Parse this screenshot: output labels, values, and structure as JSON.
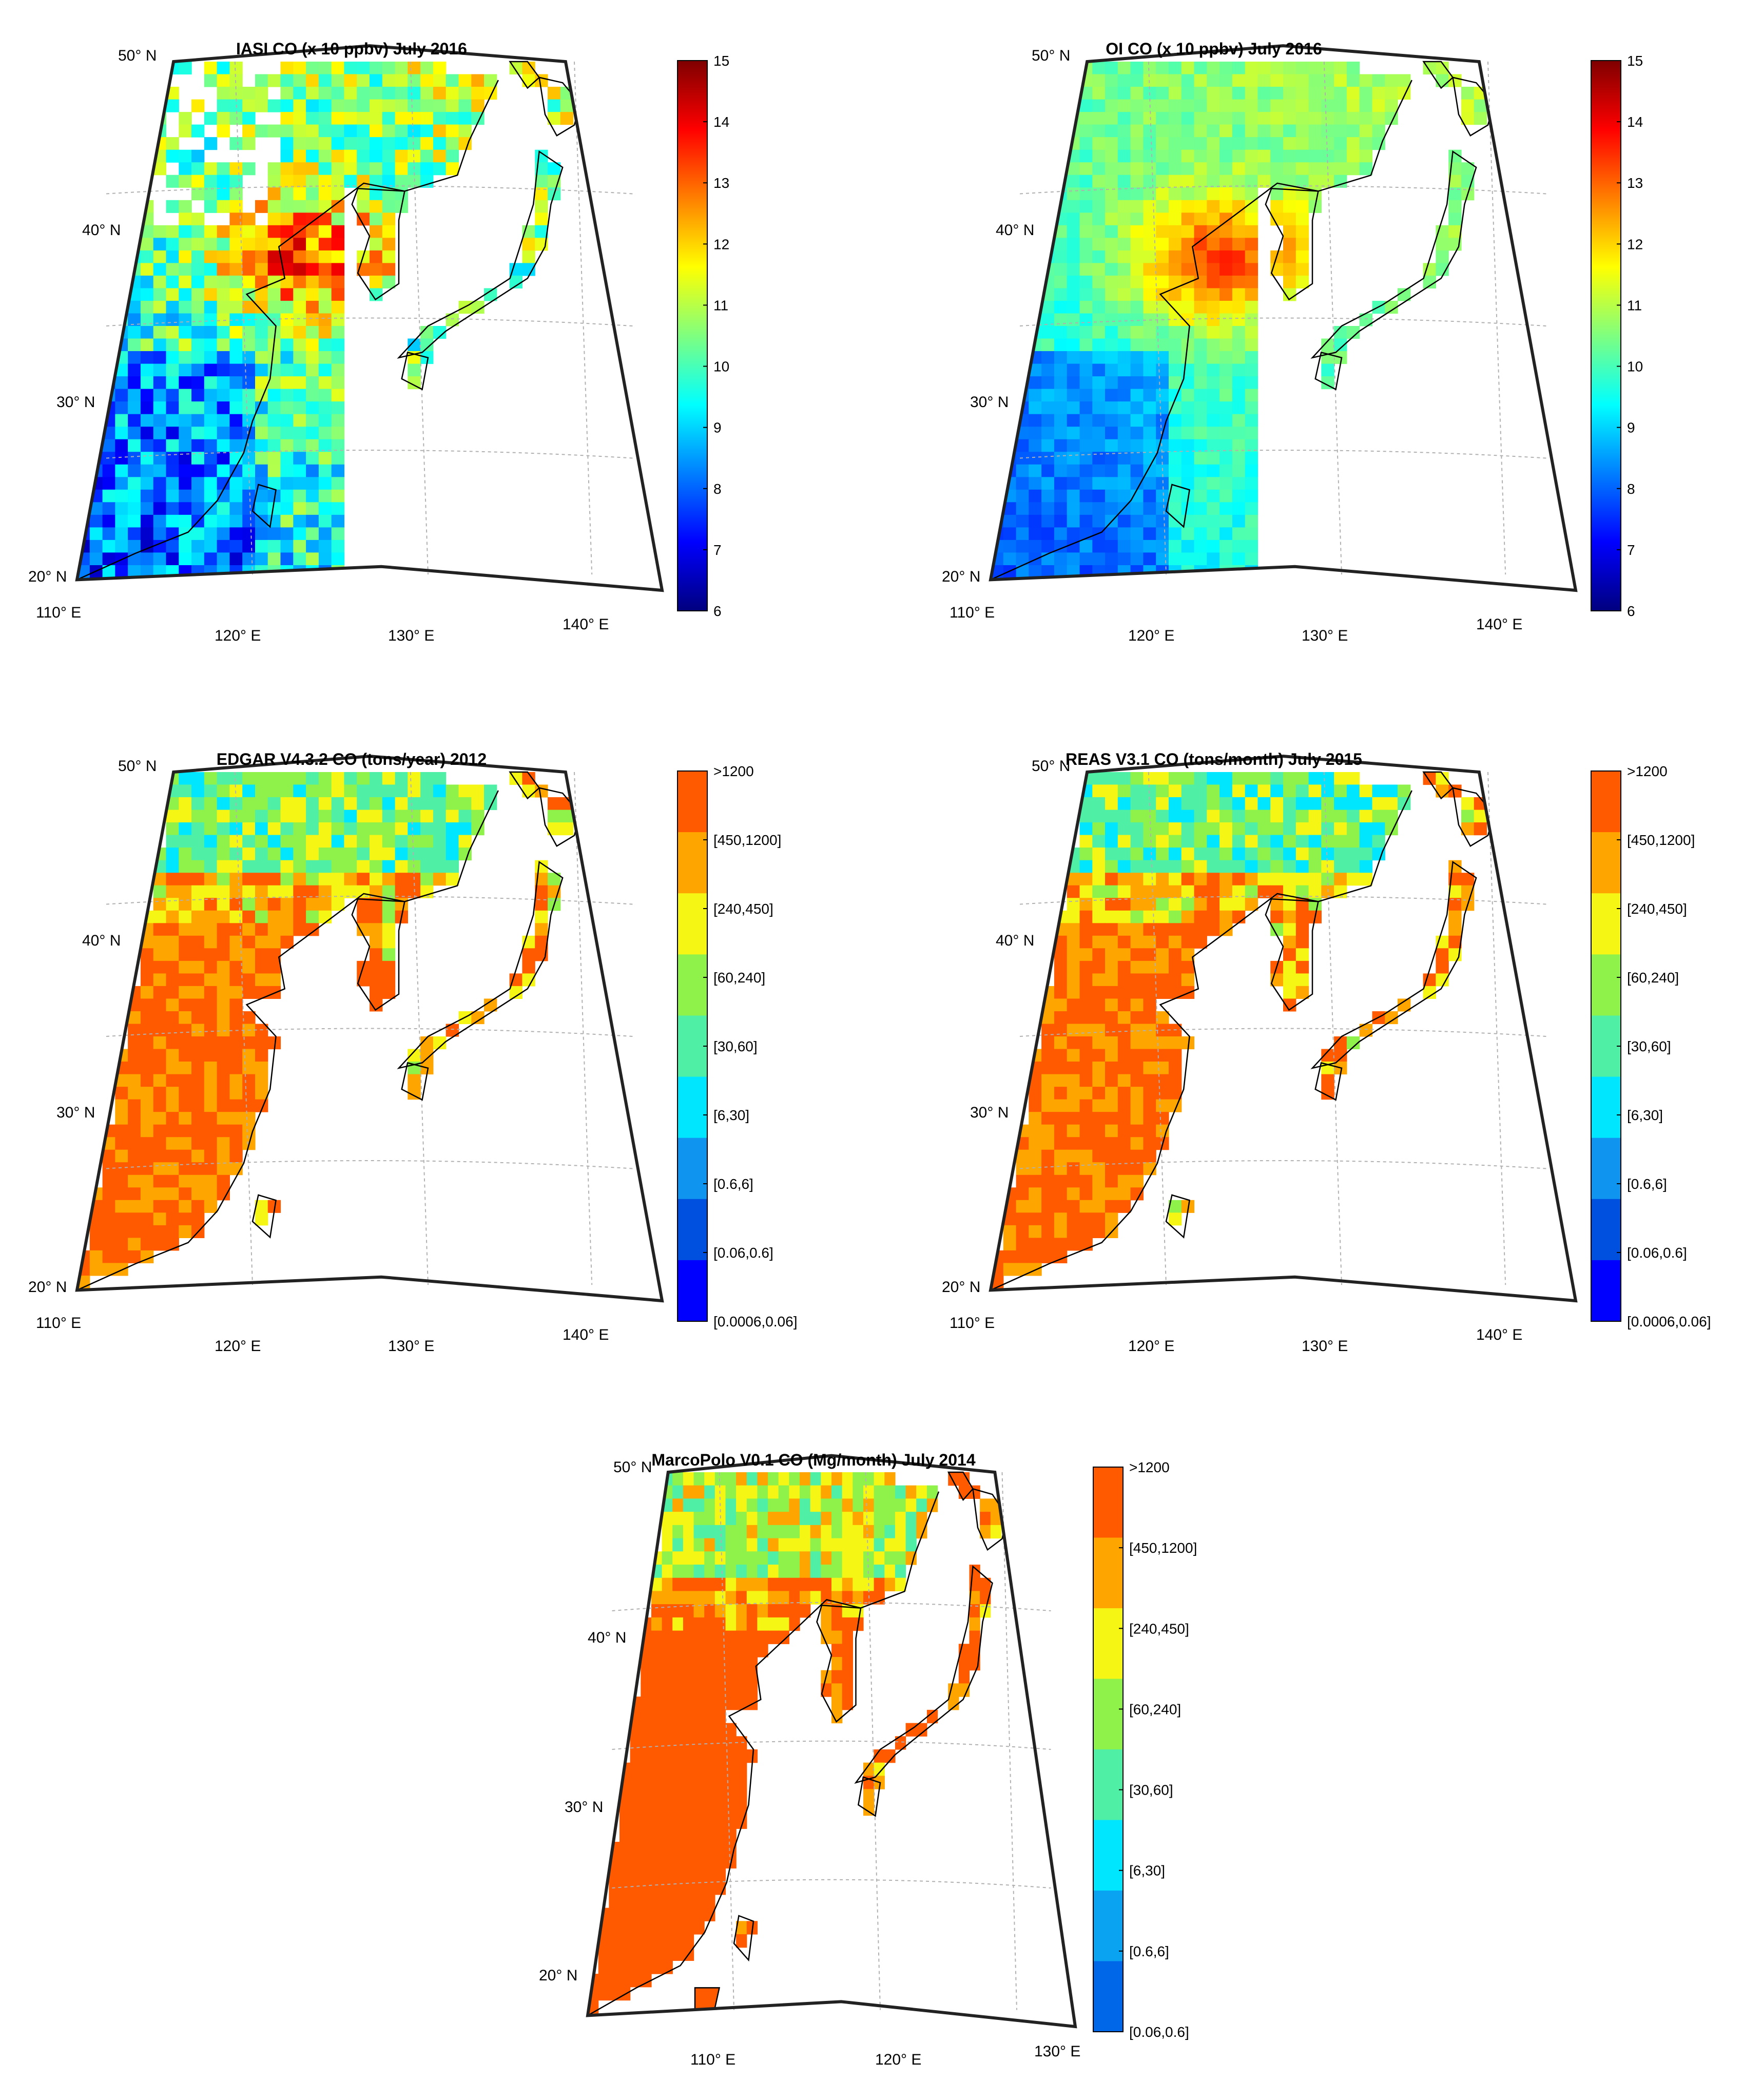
{
  "colors": {
    "jet": [
      "#00007f",
      "#0000ff",
      "#007fff",
      "#00ffff",
      "#7fff7f",
      "#ffff00",
      "#ff7f00",
      "#ff0000",
      "#7f0000"
    ],
    "categorical": [
      "#0000ff",
      "#0050e0",
      "#0f95f0",
      "#00e6ff",
      "#4ff0a6",
      "#8ef24a",
      "#f6f615",
      "#ffa500",
      "#ff5a00"
    ],
    "categorical_mp": [
      "#0067e8",
      "#0aa3f2",
      "#00e6ff",
      "#4ff0a6",
      "#8ef24a",
      "#f6f615",
      "#ffa500",
      "#ff5a00"
    ],
    "coast": "#000000",
    "grid": "#b0b0b0"
  },
  "panels": [
    {
      "id": "iasi",
      "title": "IASI CO (x 10 ppbv) July 2016",
      "colorbar_type": "continuous",
      "colorbar_ticks": [
        "15",
        "14",
        "13",
        "12",
        "11",
        "10",
        "9",
        "8",
        "7",
        "6"
      ],
      "lat_labels": [
        "50° N",
        "40° N",
        "30° N",
        "20° N"
      ],
      "lon_labels": [
        "110° E",
        "120° E",
        "130° E",
        "140° E"
      ]
    },
    {
      "id": "oi",
      "title": "OI CO (x 10 ppbv) July 2016",
      "colorbar_type": "continuous",
      "colorbar_ticks": [
        "15",
        "14",
        "13",
        "12",
        "11",
        "10",
        "9",
        "8",
        "7",
        "6"
      ],
      "lat_labels": [
        "50° N",
        "40° N",
        "30° N",
        "20° N"
      ],
      "lon_labels": [
        "110° E",
        "120° E",
        "130° E",
        "140° E"
      ]
    },
    {
      "id": "edgar",
      "title": "EDGAR V4.3.2 CO (tons/year) 2012",
      "colorbar_type": "categorical",
      "colorbar_ticks": [
        ">1200",
        "[450,1200]",
        "[240,450]",
        "[60,240]",
        "[30,60]",
        "[6,30]",
        "[0.6,6]",
        "[0.06,0.6]",
        "[0.0006,0.06]"
      ],
      "lat_labels": [
        "50° N",
        "40° N",
        "30° N",
        "20° N"
      ],
      "lon_labels": [
        "110° E",
        "120° E",
        "130° E",
        "140° E"
      ]
    },
    {
      "id": "reas",
      "title": "REAS V3.1 CO (tons/month) July 2015",
      "colorbar_type": "categorical",
      "colorbar_ticks": [
        ">1200",
        "[450,1200]",
        "[240,450]",
        "[60,240]",
        "[30,60]",
        "[6,30]",
        "[0.6,6]",
        "[0.06,0.6]",
        "[0.0006,0.06]"
      ],
      "lat_labels": [
        "50° N",
        "40° N",
        "30° N",
        "20° N"
      ],
      "lon_labels": [
        "110° E",
        "120° E",
        "130° E",
        "140° E"
      ]
    },
    {
      "id": "marcopolo",
      "title": "MarcoPolo V0.1 CO (Mg/month) July 2014",
      "colorbar_type": "categorical",
      "colorbar_ticks": [
        ">1200",
        "[450,1200]",
        "[240,450]",
        "[60,240]",
        "[30,60]",
        "[6,30]",
        "[0.6,6]",
        "[0.06,0.6]"
      ],
      "lat_labels": [
        "50° N",
        "40° N",
        "30° N",
        "20° N"
      ],
      "lon_labels": [
        "110° E",
        "120° E",
        "130° E"
      ]
    }
  ]
}
